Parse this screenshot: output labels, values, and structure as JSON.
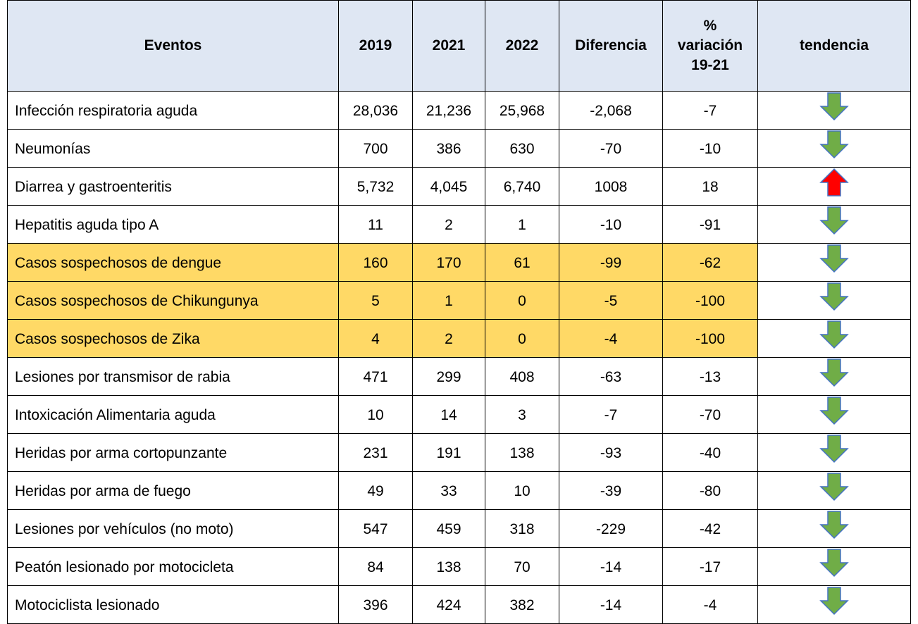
{
  "table": {
    "header": [
      "Eventos",
      "2019",
      "2021",
      "2022",
      "Diferencia",
      "%\nvariación\n19-21",
      "tendencia"
    ],
    "rows": [
      [
        "Infección respiratoria aguda",
        "28,036",
        "21,236",
        "25,968",
        "-2,068",
        "-7"
      ],
      [
        "Neumonías",
        "700",
        "386",
        "630",
        "-70",
        "-10"
      ],
      [
        "Diarrea y gastroenteritis",
        "5,732",
        "4,045",
        "6,740",
        "1008",
        "18"
      ],
      [
        "Hepatitis aguda tipo A",
        "11",
        "2",
        "1",
        "-10",
        "-91"
      ],
      [
        "Casos sospechosos de dengue",
        "160",
        "170",
        "61",
        "-99",
        "-62"
      ],
      [
        "Casos sospechosos de Chikungunya",
        "5",
        "1",
        "0",
        "-5",
        "-100"
      ],
      [
        "Casos sospechosos de Zika",
        "4",
        "2",
        "0",
        "-4",
        "-100"
      ],
      [
        "Lesiones por transmisor de rabia",
        "471",
        "299",
        "408",
        "-63",
        "-13"
      ],
      [
        "Intoxicación Alimentaria aguda",
        "10",
        "14",
        "3",
        "-7",
        "-70"
      ],
      [
        "Heridas por arma cortopunzante",
        "231",
        "191",
        "138",
        "-93",
        "-40"
      ],
      [
        "Heridas por arma de fuego",
        "49",
        "33",
        "10",
        "-39",
        "-80"
      ],
      [
        "Lesiones por vehículos (no moto)",
        "547",
        "459",
        "318",
        "-229",
        "-42"
      ],
      [
        "Peatón lesionado por motocicleta",
        "84",
        "138",
        "70",
        "-14",
        "-17"
      ],
      [
        "Motociclista lesionado",
        "396",
        "424",
        "382",
        "-14",
        "-4"
      ]
    ],
    "trend": [
      "down",
      "down",
      "up",
      "down",
      "down",
      "down",
      "down",
      "down",
      "down",
      "down",
      "down",
      "down",
      "down",
      "down"
    ],
    "highlight_rows": [
      4,
      5,
      6
    ],
    "highlight_color": "#ffd966",
    "header_color": "#dfe7f3"
  }
}
